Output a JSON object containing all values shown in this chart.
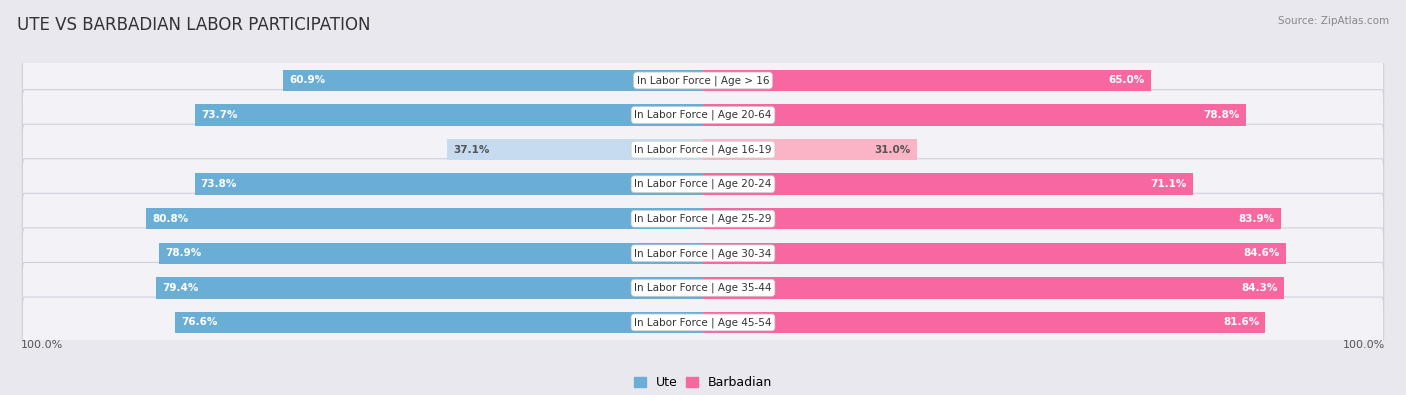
{
  "title": "UTE VS BARBADIAN LABOR PARTICIPATION",
  "source": "Source: ZipAtlas.com",
  "categories": [
    "In Labor Force | Age > 16",
    "In Labor Force | Age 20-64",
    "In Labor Force | Age 16-19",
    "In Labor Force | Age 20-24",
    "In Labor Force | Age 25-29",
    "In Labor Force | Age 30-34",
    "In Labor Force | Age 35-44",
    "In Labor Force | Age 45-54"
  ],
  "ute_values": [
    60.9,
    73.7,
    37.1,
    73.8,
    80.8,
    78.9,
    79.4,
    76.6
  ],
  "barb_values": [
    65.0,
    78.8,
    31.0,
    71.1,
    83.9,
    84.6,
    84.3,
    81.6
  ],
  "ute_color": "#6aaed6",
  "ute_color_light": "#c6dbef",
  "barb_color": "#f768a1",
  "barb_color_light": "#fbb4c6",
  "bg_color": "#e8e8ee",
  "row_bg_color": "#f2f2f7",
  "row_border_color": "#d0d0da",
  "max_val": 100.0,
  "bar_height": 0.62,
  "title_fontsize": 12,
  "label_fontsize": 7.5,
  "value_fontsize": 7.5,
  "axis_label_fontsize": 8,
  "legend_fontsize": 9
}
